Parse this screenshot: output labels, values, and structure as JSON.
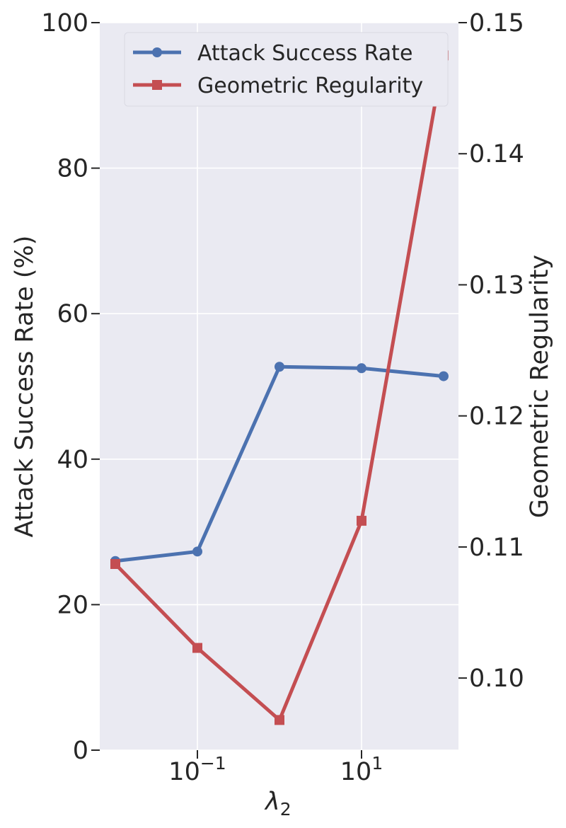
{
  "chart_data": {
    "type": "line",
    "xlabel": "λ2",
    "xlabel_main": "λ",
    "xlabel_sub": "2",
    "x_scale": "log",
    "x": [
      0.01,
      0.1,
      1,
      10,
      100
    ],
    "x_ticks": [
      {
        "value": 0.1,
        "base": "10",
        "exp": "−1"
      },
      {
        "value": 10,
        "base": "10",
        "exp": "1"
      }
    ],
    "y_left": {
      "label": "Attack Success Rate (%)",
      "lim": [
        0,
        100
      ],
      "ticks": [
        "0",
        "20",
        "40",
        "60",
        "80",
        "100"
      ],
      "tick_values": [
        0,
        20,
        40,
        60,
        80,
        100
      ]
    },
    "y_right": {
      "label": "Geometric Regularity",
      "lim": [
        0.0945,
        0.15
      ],
      "ticks": [
        "0.10",
        "0.11",
        "0.12",
        "0.13",
        "0.14",
        "0.15"
      ],
      "tick_values": [
        0.1,
        0.11,
        0.12,
        0.13,
        0.14,
        0.15
      ]
    },
    "series": [
      {
        "name": "Attack Success Rate",
        "axis": "left",
        "color": "#4c72b0",
        "marker": "circle",
        "values": [
          26.0,
          27.3,
          52.7,
          52.5,
          51.4
        ]
      },
      {
        "name": "Geometric Regularity",
        "axis": "right",
        "color": "#c44e52",
        "marker": "square",
        "values": [
          0.1087,
          0.1023,
          0.0968,
          0.112,
          0.1475
        ]
      }
    ],
    "grid": true,
    "legend_position": "top"
  }
}
